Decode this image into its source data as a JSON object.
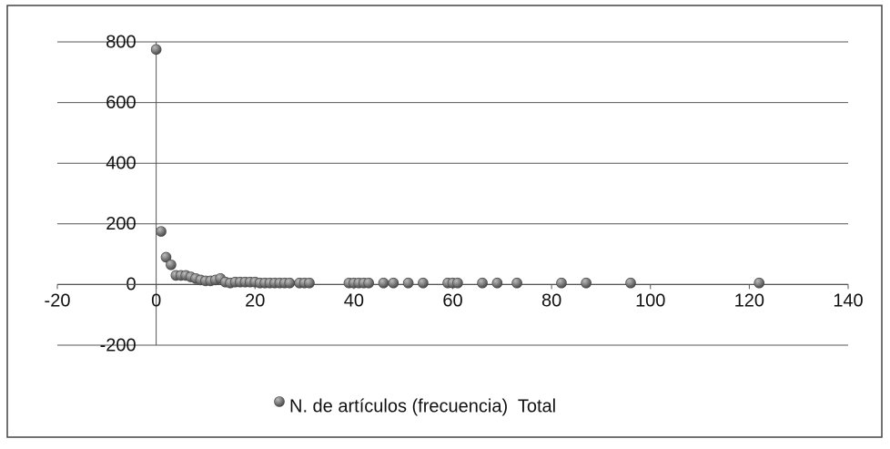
{
  "chart_data": {
    "type": "scatter",
    "series": [
      {
        "name": "N. de artículos (frecuencia)  Total",
        "color": "#4a4a4a",
        "x": [
          0,
          1,
          2,
          3,
          4,
          5,
          6,
          7,
          8,
          9,
          10,
          11,
          12,
          13,
          14,
          15,
          16,
          17,
          18,
          19,
          20,
          21,
          22,
          23,
          24,
          25,
          26,
          27,
          29,
          30,
          31,
          39,
          40,
          41,
          42,
          43,
          46,
          48,
          51,
          54,
          59,
          60,
          61,
          66,
          69,
          73,
          82,
          87,
          96,
          122
        ],
        "values": [
          775,
          175,
          90,
          65,
          30,
          30,
          30,
          25,
          20,
          15,
          12,
          12,
          15,
          20,
          8,
          5,
          8,
          8,
          8,
          8,
          8,
          5,
          5,
          5,
          5,
          5,
          5,
          5,
          5,
          5,
          5,
          5,
          5,
          5,
          5,
          5,
          5,
          5,
          5,
          5,
          5,
          5,
          5,
          5,
          5,
          5,
          5,
          5,
          5,
          5
        ]
      }
    ],
    "xlim": [
      -20,
      140
    ],
    "xticks": [
      -20,
      0,
      20,
      40,
      60,
      80,
      100,
      120,
      140
    ],
    "ylim": [
      -200,
      800
    ],
    "yticks": [
      -200,
      0,
      200,
      400,
      600,
      800
    ],
    "grid": true,
    "legend": "bottom"
  }
}
